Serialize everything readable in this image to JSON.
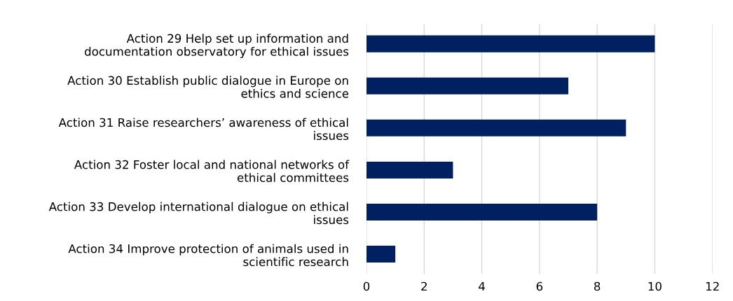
{
  "chart_data": {
    "type": "bar",
    "orientation": "horizontal",
    "categories": [
      "Action 29 Help set up information and\ndocumentation observatory for ethical issues",
      "Action 30 Establish public dialogue in Europe on\nethics and science",
      "Action 31 Raise researchers’ awareness of ethical\nissues",
      "Action 32 Foster local and national networks of\nethical committees",
      "Action 33 Develop international dialogue on ethical\nissues",
      "Action 34 Improve protection of animals used in\nscientific research"
    ],
    "values": [
      10,
      7,
      9,
      3,
      8,
      1
    ],
    "color": "#002060",
    "xlim": [
      0,
      12
    ],
    "xticks": [
      0,
      2,
      4,
      6,
      8,
      10,
      12
    ],
    "grid": "x",
    "legend": false
  }
}
